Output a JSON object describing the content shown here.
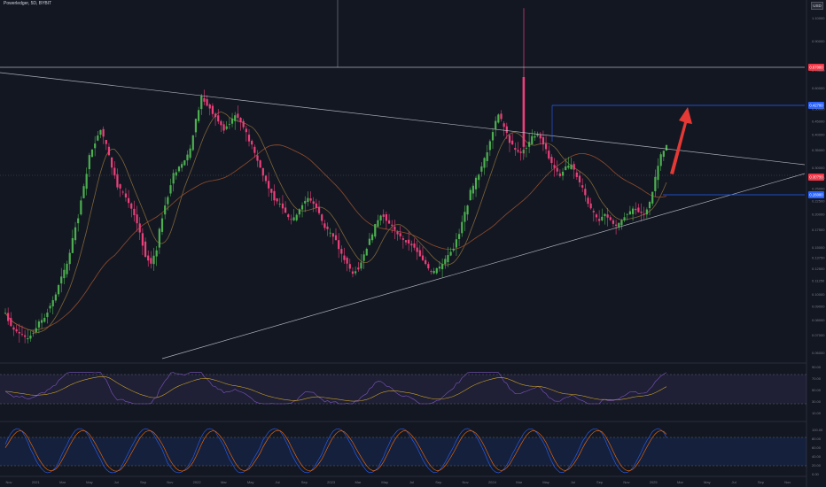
{
  "header": {
    "title": "Powerledger, 5D, BYBIT",
    "currency": "USD"
  },
  "colors": {
    "background": "#131722",
    "up": "#26a69a",
    "up_body": "#4caf50",
    "down": "#ec407a",
    "ma_short": "#8a6d3b",
    "ma_long": "#a0522d",
    "trendline": "#d1d4dc",
    "level": "#2962ff",
    "arrow": "#e53935",
    "rsi": "#7e57c2",
    "stoch_k": "#2962ff",
    "stoch_d": "#ff6d00"
  },
  "price_axis": {
    "ticks": [
      "1.10000",
      "0.90000",
      "0.70000",
      "0.60000",
      "0.50000",
      "0.45000",
      "0.40000",
      "0.35000",
      "0.30000",
      "0.27500",
      "0.25000",
      "0.22500",
      "0.20000",
      "0.17500",
      "0.15000",
      "0.13750",
      "0.12500",
      "0.11250",
      "0.10000",
      "0.09000",
      "0.08000",
      "0.07000",
      "0.06000"
    ],
    "labels": {
      "high_level": "0.67000",
      "current_price": "0.30700",
      "resistance": "0.42700",
      "support": "0.26000"
    }
  },
  "rsi_axis": {
    "ticks": [
      "90.00",
      "70.00",
      "50.00",
      "30.00",
      "10.00"
    ]
  },
  "stoch_axis": {
    "ticks": [
      "100.00",
      "80.00",
      "60.00",
      "40.00",
      "20.00",
      "0.00"
    ]
  },
  "time_axis": {
    "labels": [
      "Nov",
      "2021",
      "Mar",
      "May",
      "Jul",
      "Sep",
      "Nov",
      "2022",
      "Mar",
      "May",
      "Jul",
      "Sep",
      "2023",
      "Mar",
      "May",
      "Jul",
      "Sep",
      "Nov",
      "2024",
      "Mar",
      "May",
      "Jul",
      "Sep",
      "Nov",
      "2025",
      "Mar",
      "May",
      "Jul",
      "Sep",
      "Nov"
    ]
  },
  "chart_data": {
    "type": "candlestick",
    "symbol": "Powerledger",
    "interval": "5D",
    "exchange": "BYBIT",
    "approx_close_series": [
      0.085,
      0.075,
      0.072,
      0.07,
      0.068,
      0.072,
      0.078,
      0.082,
      0.09,
      0.1,
      0.115,
      0.13,
      0.16,
      0.2,
      0.25,
      0.33,
      0.38,
      0.42,
      0.36,
      0.3,
      0.26,
      0.24,
      0.22,
      0.2,
      0.17,
      0.14,
      0.13,
      0.15,
      0.2,
      0.24,
      0.28,
      0.3,
      0.32,
      0.35,
      0.45,
      0.55,
      0.52,
      0.48,
      0.45,
      0.42,
      0.44,
      0.48,
      0.45,
      0.4,
      0.36,
      0.32,
      0.28,
      0.25,
      0.23,
      0.22,
      0.2,
      0.19,
      0.2,
      0.22,
      0.23,
      0.22,
      0.2,
      0.18,
      0.17,
      0.16,
      0.14,
      0.13,
      0.12,
      0.125,
      0.14,
      0.16,
      0.18,
      0.2,
      0.19,
      0.18,
      0.17,
      0.16,
      0.155,
      0.15,
      0.14,
      0.13,
      0.12,
      0.125,
      0.13,
      0.14,
      0.15,
      0.17,
      0.2,
      0.24,
      0.27,
      0.3,
      0.35,
      0.42,
      0.48,
      0.43,
      0.38,
      0.35,
      0.34,
      0.36,
      0.39,
      0.4,
      0.37,
      0.33,
      0.3,
      0.28,
      0.3,
      0.31,
      0.28,
      0.25,
      0.22,
      0.2,
      0.19,
      0.2,
      0.19,
      0.18,
      0.19,
      0.2,
      0.21,
      0.205,
      0.2,
      0.22,
      0.27,
      0.33,
      0.36
    ],
    "trendlines": [
      {
        "name": "descending-resistance",
        "from": [
          0.52,
          0
        ],
        "to": [
          0.36,
          1
        ]
      },
      {
        "name": "ascending-support",
        "from": [
          0.05,
          0.2
        ],
        "to": [
          0.27,
          1
        ]
      }
    ],
    "levels": [
      0.67,
      0.427,
      0.26
    ],
    "indicators": [
      "RSI",
      "Stochastic RSI",
      "Moving averages"
    ]
  }
}
